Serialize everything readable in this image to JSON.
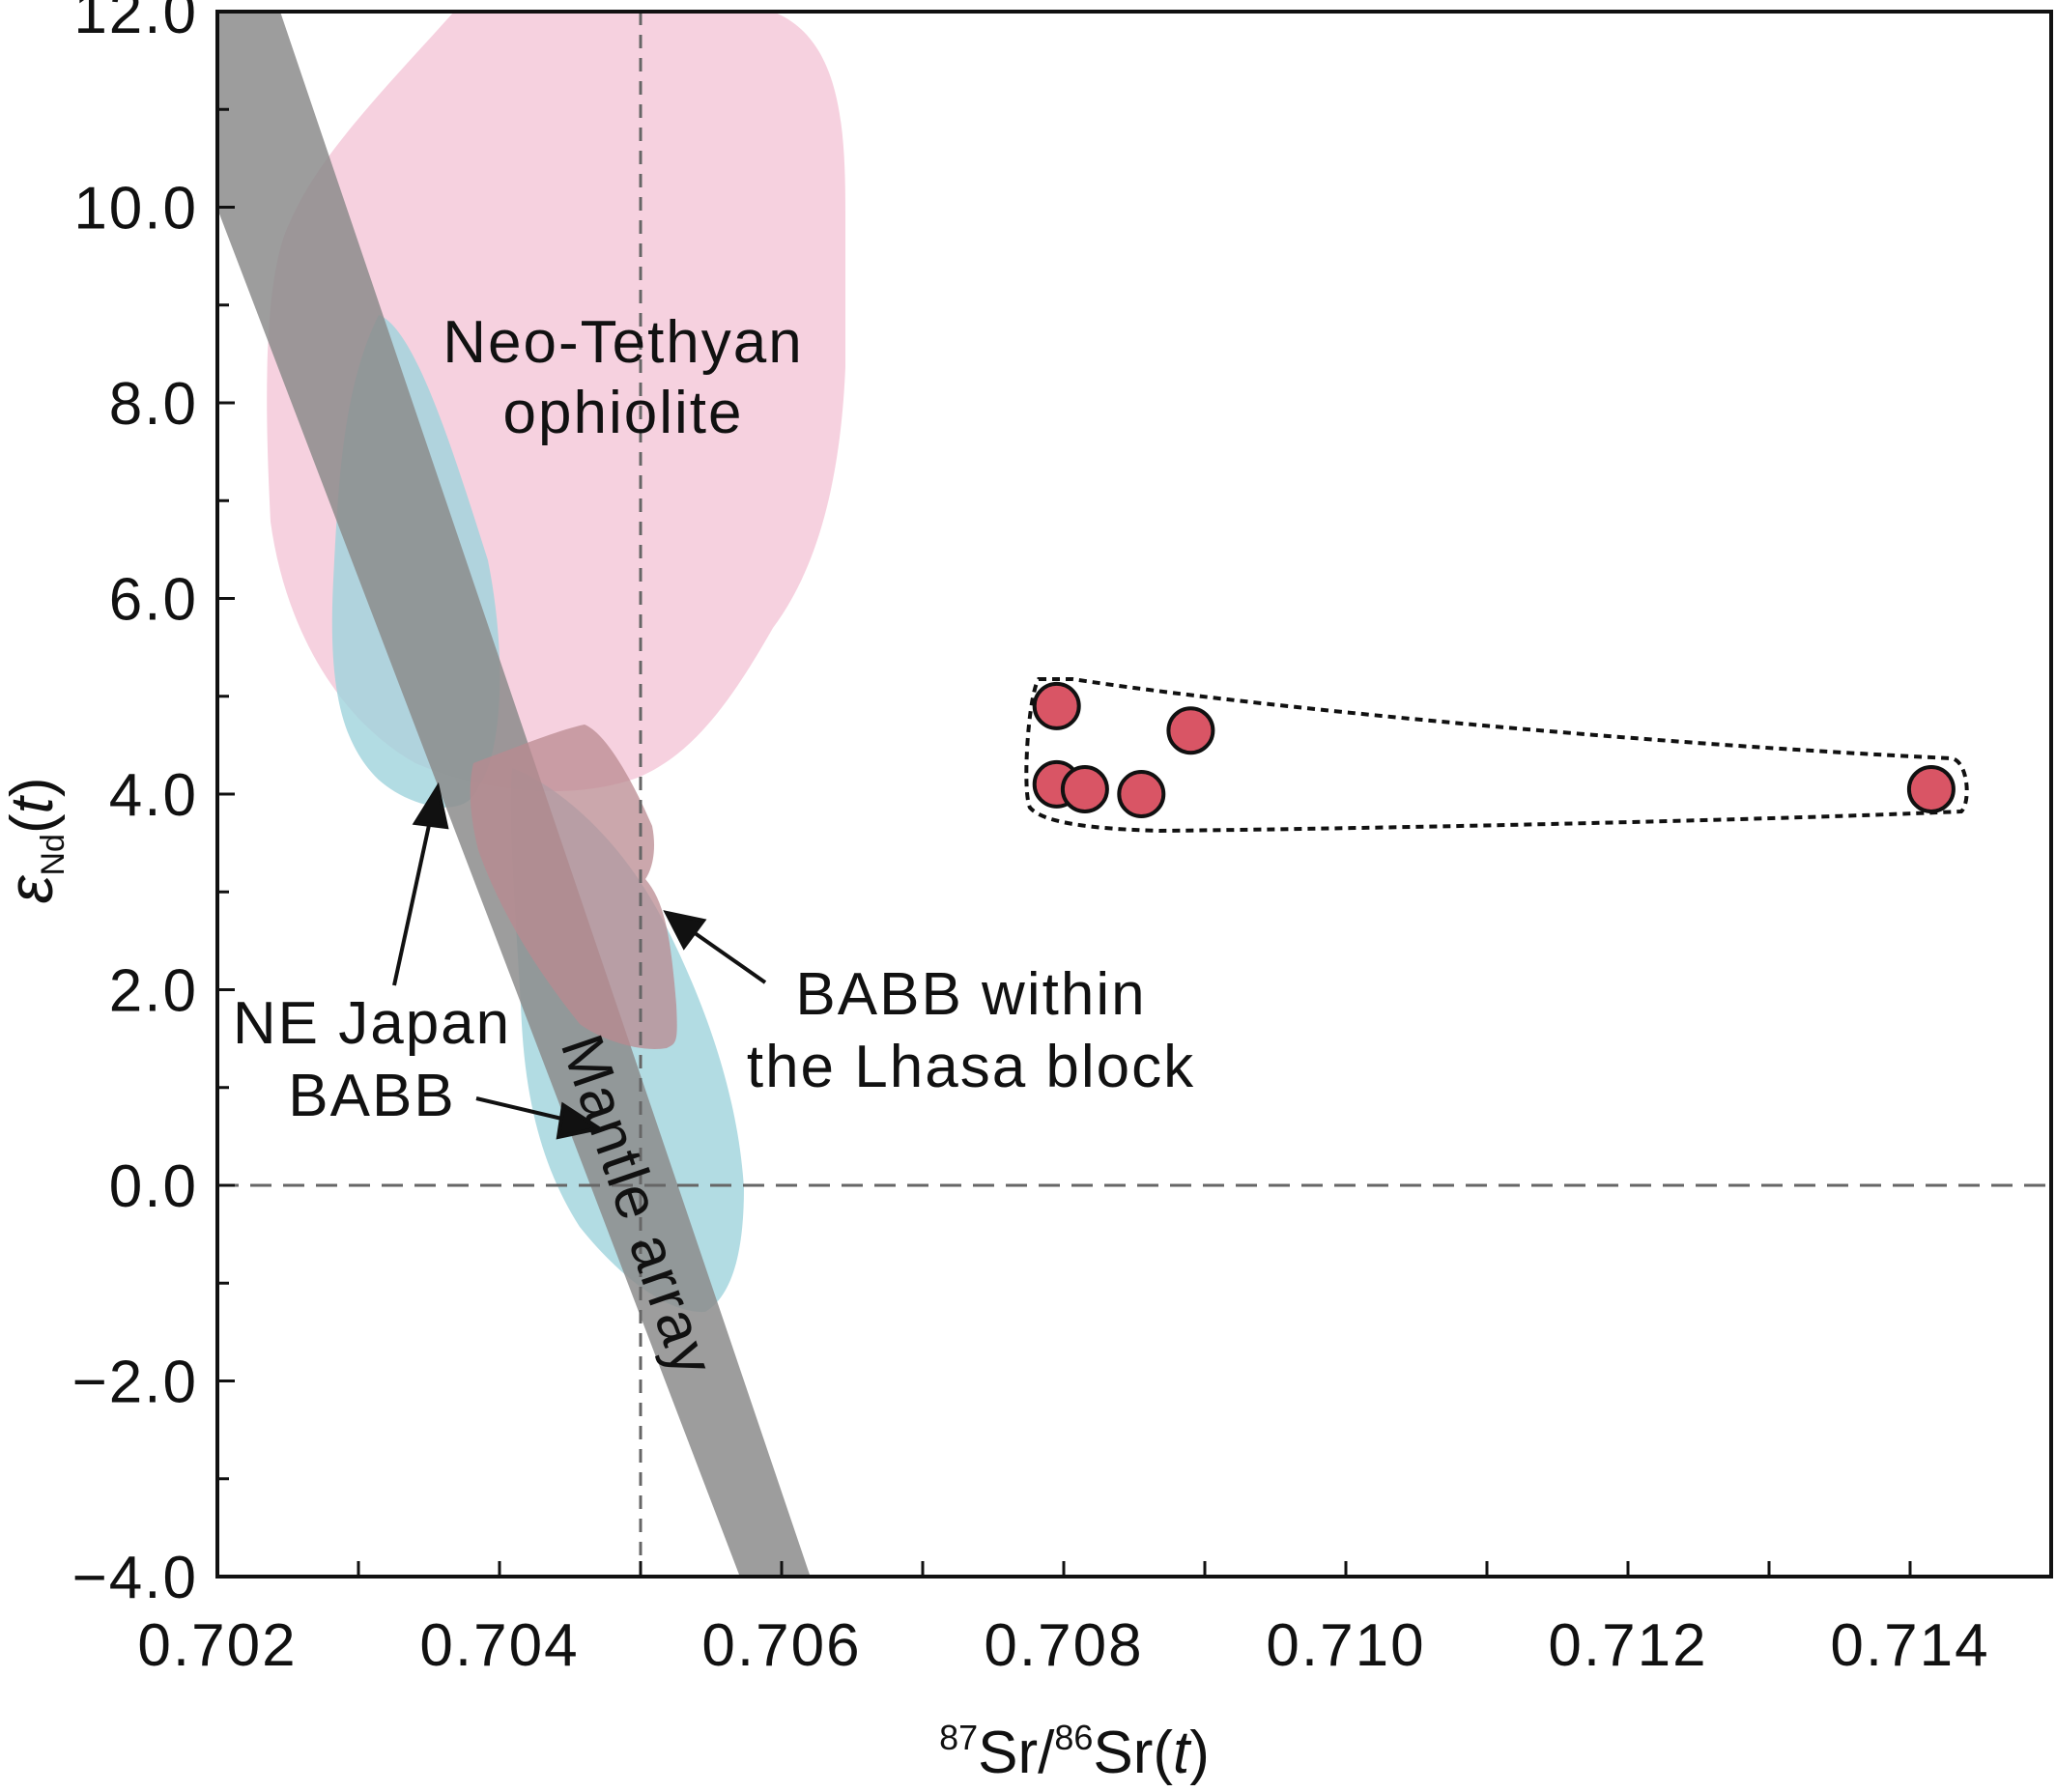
{
  "chart_data": {
    "type": "scatter",
    "title": "",
    "xlabel": {
      "sup1": "87",
      "mid": "Sr/",
      "sup2": "86",
      "end": "Sr(",
      "var": "t",
      "close": ")"
    },
    "ylabel": {
      "sym": "ε",
      "sub": "Nd",
      "open": "(",
      "var": "t",
      "close": ")"
    },
    "xlim": [
      0.702,
      0.715
    ],
    "ylim": [
      -4.0,
      12.0
    ],
    "x_ticks": [
      "0.702",
      "0.704",
      "0.706",
      "0.708",
      "0.710",
      "0.712",
      "0.714"
    ],
    "x_tick_values": [
      0.702,
      0.704,
      0.706,
      0.708,
      0.71,
      0.712,
      0.714
    ],
    "y_ticks": [
      "12.0",
      "10.0",
      "8.0",
      "6.0",
      "4.0",
      "2.0",
      "0.0",
      "−2.0",
      "−4.0"
    ],
    "y_tick_values": [
      12,
      10,
      8,
      6,
      4,
      2,
      0,
      -2,
      -4
    ],
    "reference_lines": {
      "vertical_x": 0.705,
      "horizontal_y": 0.0
    },
    "series": [
      {
        "points": [
          {
            "x": 0.70795,
            "y": 4.9
          },
          {
            "x": 0.70795,
            "y": 4.1
          },
          {
            "x": 0.70815,
            "y": 4.05
          },
          {
            "x": 0.70855,
            "y": 4.0
          },
          {
            "x": 0.7089,
            "y": 4.65
          },
          {
            "x": 0.71415,
            "y": 4.05
          }
        ],
        "color": "#d95565"
      }
    ],
    "fields": [
      {
        "name": "Mantle array",
        "color": "#8c8c8c"
      },
      {
        "name": "Neo-Tethyan ophiolite",
        "color": "#f3c2d4"
      },
      {
        "name": "NE Japan BABB",
        "color": "#9fd3dc"
      },
      {
        "name": "BABB within the Lhasa block",
        "color": "#b98a90"
      }
    ],
    "annotations": {
      "neo_tethyan": [
        "Neo-Tethyan",
        "ophiolite"
      ],
      "ne_japan": [
        "NE Japan",
        "BABB"
      ],
      "babb_lhasa": [
        "BABB within",
        "the Lhasa block"
      ],
      "mantle_array": "Mantle array"
    },
    "grid": false,
    "legend": "none"
  }
}
